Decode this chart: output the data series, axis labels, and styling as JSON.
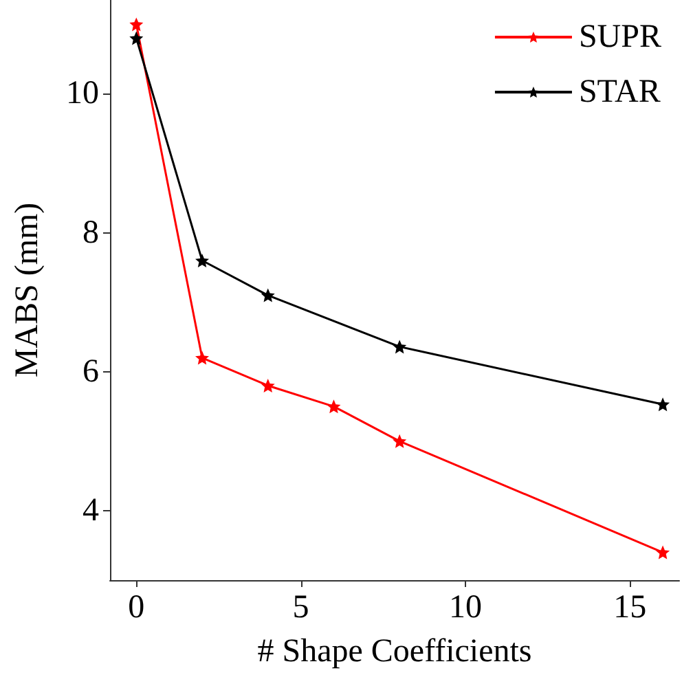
{
  "chart_data": {
    "type": "line",
    "xlabel": "# Shape Coefficients",
    "ylabel": "MABS (mm)",
    "series": [
      {
        "name": "SUPR",
        "color": "#ff0000",
        "x": [
          0,
          2,
          4,
          6,
          8,
          16
        ],
        "values": [
          11.0,
          6.2,
          5.8,
          5.5,
          5.0,
          3.4
        ]
      },
      {
        "name": "STAR",
        "color": "#000000",
        "x": [
          0,
          2,
          4,
          8,
          16
        ],
        "values": [
          10.8,
          7.6,
          7.1,
          6.36,
          5.53
        ]
      }
    ],
    "xlim": [
      -0.8,
      16.5
    ],
    "xticks": [
      0,
      5,
      10,
      15
    ],
    "ylim": [
      3,
      11.35
    ],
    "yticks": [
      4,
      6,
      8,
      10
    ],
    "grid": false,
    "legend": "top right",
    "marker": "star",
    "line_style": "solid"
  }
}
